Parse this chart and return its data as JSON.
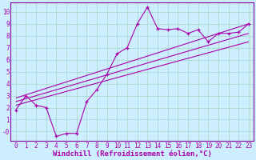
{
  "title": "",
  "xlabel": "Windchill (Refroidissement éolien,°C)",
  "ylabel": "",
  "bg_color": "#cceeff",
  "grid_color": "#aaddcc",
  "line_color": "#aa00aa",
  "spine_color": "#8800aa",
  "xlim": [
    -0.5,
    23.5
  ],
  "ylim": [
    -0.8,
    10.8
  ],
  "xticks": [
    0,
    1,
    2,
    3,
    4,
    5,
    6,
    7,
    8,
    9,
    10,
    11,
    12,
    13,
    14,
    15,
    16,
    17,
    18,
    19,
    20,
    21,
    22,
    23
  ],
  "yticks": [
    0,
    1,
    2,
    3,
    4,
    5,
    6,
    7,
    8,
    9,
    10
  ],
  "ytick_labels": [
    "-0",
    "1",
    "2",
    "3",
    "4",
    "5",
    "6",
    "7",
    "8",
    "9",
    "10"
  ],
  "scatter_x": [
    0,
    1,
    2,
    3,
    4,
    5,
    6,
    7,
    8,
    9,
    10,
    11,
    12,
    13,
    14,
    15,
    16,
    17,
    18,
    19,
    20,
    21,
    22,
    23
  ],
  "scatter_y": [
    1.8,
    3.0,
    2.2,
    2.0,
    -0.4,
    -0.15,
    -0.15,
    2.5,
    3.5,
    4.8,
    6.5,
    7.0,
    9.0,
    10.4,
    8.6,
    8.5,
    8.6,
    8.2,
    8.5,
    7.5,
    8.2,
    8.2,
    8.3,
    9.0
  ],
  "reg_line1": {
    "x": [
      0,
      23
    ],
    "y": [
      2.2,
      7.5
    ]
  },
  "reg_line2": {
    "x": [
      0,
      23
    ],
    "y": [
      2.5,
      8.2
    ]
  },
  "reg_line3": {
    "x": [
      0,
      23
    ],
    "y": [
      2.8,
      9.0
    ]
  },
  "font_family": "monospace",
  "tick_fontsize": 5.5,
  "xlabel_fontsize": 6.5
}
